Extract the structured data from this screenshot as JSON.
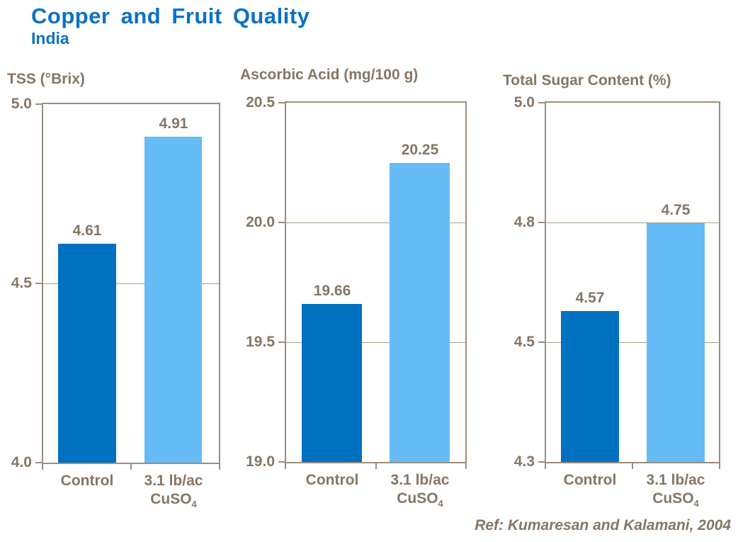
{
  "header": {
    "title": "Copper and Fruit Quality",
    "subtitle": "India"
  },
  "footer": {
    "reference": "Ref: Kumaresan and Kalamani, 2004"
  },
  "colors": {
    "title_blue": "#0C71C6",
    "control_bar": "#0070C0",
    "treatment_bar": "#66BCF7",
    "chart_text": "#877563",
    "axis_line": "#9C8E7D",
    "gridline": "#A99C8B"
  },
  "categories_display": [
    {
      "lines": [
        {
          "text": "Control"
        }
      ]
    },
    {
      "lines": [
        {
          "text": "3.1 lb/ac"
        },
        {
          "text": "CuSO",
          "sub": "4"
        }
      ]
    }
  ],
  "chart_data": [
    {
      "type": "bar",
      "title": "TSS (°Brix)",
      "categories": [
        "Control",
        "3.1 lb/ac CuSO4"
      ],
      "ylim": [
        4.0,
        5.0
      ],
      "yticks": [
        "5.0",
        "4.5",
        "4.0"
      ],
      "grid": true,
      "legend": false,
      "bars": [
        {
          "category": "Control",
          "value": 4.61,
          "label": "4.61",
          "color_key": "control_bar",
          "height_frac": 0.611
        },
        {
          "category": "3.1 lb/ac CuSO4",
          "value": 4.91,
          "label": "4.91",
          "color_key": "treatment_bar",
          "height_frac": 0.909
        }
      ]
    },
    {
      "type": "bar",
      "title": "Ascorbic Acid (mg/100 g)",
      "categories": [
        "Control",
        "3.1 lb/ac CuSO4"
      ],
      "ylim": [
        19.0,
        20.5
      ],
      "yticks": [
        "20.5",
        "20.0",
        "19.5",
        "19.0"
      ],
      "grid": true,
      "legend": false,
      "bars": [
        {
          "category": "Control",
          "value": 19.66,
          "label": "19.66",
          "color_key": "control_bar",
          "height_frac": 0.44
        },
        {
          "category": "3.1 lb/ac CuSO4",
          "value": 20.25,
          "label": "20.25",
          "color_key": "treatment_bar",
          "height_frac": 0.833
        }
      ]
    },
    {
      "type": "bar",
      "title": "Total Sugar Content (%)",
      "categories": [
        "Control",
        "3.1 lb/ac CuSO4"
      ],
      "ylim": [
        4.3,
        5.0
      ],
      "yticks": [
        "5.0",
        "4.8",
        "4.5",
        "4.3"
      ],
      "grid": true,
      "legend": false,
      "bars": [
        {
          "category": "Control",
          "value": 4.57,
          "label": "4.57",
          "color_key": "control_bar",
          "height_frac": 0.42
        },
        {
          "category": "3.1 lb/ac CuSO4",
          "value": 4.75,
          "label": "4.75",
          "color_key": "treatment_bar",
          "height_frac": 0.665
        }
      ]
    }
  ]
}
